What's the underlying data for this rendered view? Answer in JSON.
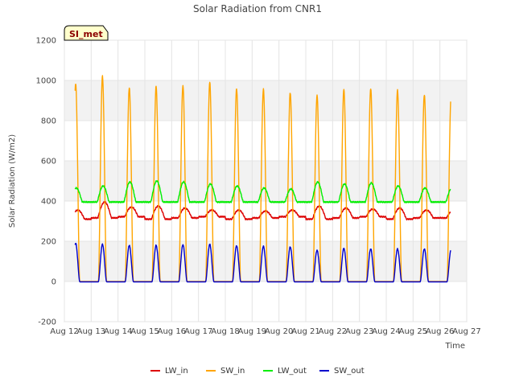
{
  "chart_data": {
    "type": "line",
    "title": "Solar Radiation from CNR1",
    "xlabel": "Time",
    "ylabel": "Solar Radiation (W/m2)",
    "badge": "SI_met",
    "ylim": [
      -200,
      1200
    ],
    "yticks": [
      -200,
      0,
      200,
      400,
      600,
      800,
      1000,
      1200
    ],
    "xlim": [
      12,
      27
    ],
    "xticks": [
      {
        "v": 12,
        "label": "Aug 12"
      },
      {
        "v": 13,
        "label": "Aug 13"
      },
      {
        "v": 14,
        "label": "Aug 14"
      },
      {
        "v": 15,
        "label": "Aug 15"
      },
      {
        "v": 16,
        "label": "Aug 16"
      },
      {
        "v": 17,
        "label": "Aug 17"
      },
      {
        "v": 18,
        "label": "Aug 18"
      },
      {
        "v": 19,
        "label": "Aug 19"
      },
      {
        "v": 20,
        "label": "Aug 20"
      },
      {
        "v": 21,
        "label": "Aug 21"
      },
      {
        "v": 22,
        "label": "Aug 22"
      },
      {
        "v": 23,
        "label": "Aug 23"
      },
      {
        "v": 24,
        "label": "Aug 24"
      },
      {
        "v": 25,
        "label": "Aug 25"
      },
      {
        "v": 26,
        "label": "Aug 26"
      },
      {
        "v": 27,
        "label": "Aug 27"
      }
    ],
    "grid": true,
    "legend_position": "bottom",
    "series": [
      {
        "name": "LW_in",
        "color": "#dd0000",
        "role": "lwin",
        "daily": [
          355,
          395,
          370,
          375,
          365,
          355,
          355,
          350,
          355,
          375,
          365,
          360,
          365,
          355
        ]
      },
      {
        "name": "SW_in",
        "color": "#ffa500",
        "role": "swin",
        "daily": [
          985,
          1020,
          965,
          970,
          975,
          990,
          960,
          955,
          940,
          925,
          955,
          960,
          950,
          930
        ]
      },
      {
        "name": "LW_out",
        "color": "#00ee00",
        "role": "lwout",
        "daily": [
          465,
          475,
          495,
          500,
          495,
          485,
          475,
          465,
          460,
          495,
          485,
          490,
          475,
          465
        ]
      },
      {
        "name": "SW_out",
        "color": "#0000cc",
        "role": "swout",
        "daily": [
          190,
          185,
          180,
          180,
          183,
          185,
          178,
          175,
          172,
          155,
          165,
          162,
          162,
          162
        ]
      }
    ],
    "data_start": 12.4,
    "data_end": 26.4
  }
}
